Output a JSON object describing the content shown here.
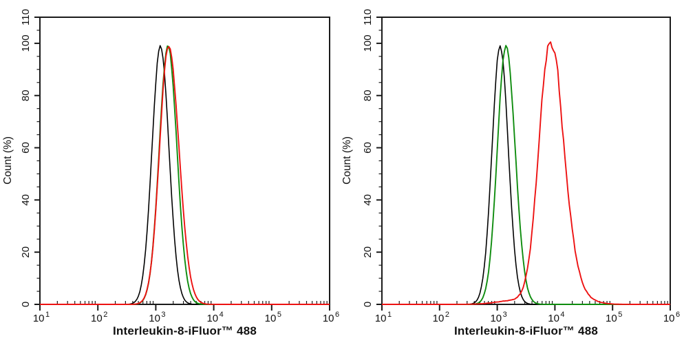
{
  "figure": {
    "background_color": "#ffffff",
    "axis_color": "#1a1a1a",
    "panel_count": 2
  },
  "chart_data": [
    {
      "type": "line",
      "subtype": "flow-cytometry-histogram-overlay",
      "title": "",
      "xlabel": "Interleukin-8-iFluor™ 488",
      "ylabel": "Count  (%)",
      "x_scale": "log10",
      "x_range": [
        10,
        1000000
      ],
      "x_major_tick_exponents": [
        1,
        2,
        3,
        4,
        5,
        6
      ],
      "x_minor_ticks": "mantissas 2-9 within each decade",
      "y_range": [
        0,
        110
      ],
      "y_major_ticks": [
        0,
        20,
        40,
        60,
        80,
        100,
        110
      ],
      "y_minor_tick_step": 5,
      "grid": false,
      "legend": "none",
      "series": [
        {
          "name": "black-curve",
          "color": "#000000",
          "stroke_width": 1.6,
          "peak_x": 1200,
          "center_log10": 3.08,
          "height_pct": 99,
          "sigma_left": 0.145,
          "sigma_right": 0.147,
          "bumps": [],
          "noise_amp_pct": 0.5,
          "noise_seed": 3
        },
        {
          "name": "green-curve",
          "color": "#0e8c0e",
          "stroke_width": 1.9,
          "peak_x": 1620,
          "center_log10": 3.21,
          "height_pct": 99,
          "sigma_left": 0.15,
          "sigma_right": 0.155,
          "bumps": [],
          "noise_amp_pct": 0.5,
          "noise_seed": 7
        },
        {
          "name": "red-curve",
          "color": "#ed1111",
          "stroke_width": 1.9,
          "peak_x": 1660,
          "center_log10": 3.22,
          "height_pct": 99,
          "sigma_left": 0.155,
          "sigma_right": 0.18,
          "bumps": [],
          "noise_amp_pct": 0.5,
          "noise_seed": 11
        }
      ]
    },
    {
      "type": "line",
      "subtype": "flow-cytometry-histogram-overlay",
      "title": "",
      "xlabel": "Interleukin-8-iFluor™ 488",
      "ylabel": "Count  (%)",
      "x_scale": "log10",
      "x_range": [
        10,
        1000000
      ],
      "x_major_tick_exponents": [
        1,
        2,
        3,
        4,
        5,
        6
      ],
      "x_minor_ticks": "mantissas 2-9 within each decade",
      "y_range": [
        0,
        110
      ],
      "y_major_ticks": [
        0,
        20,
        40,
        60,
        80,
        100,
        110
      ],
      "y_minor_tick_step": 5,
      "grid": false,
      "legend": "none",
      "series": [
        {
          "name": "black-curve",
          "color": "#000000",
          "stroke_width": 1.6,
          "peak_x": 1120,
          "center_log10": 3.05,
          "height_pct": 99,
          "sigma_left": 0.14,
          "sigma_right": 0.142,
          "bumps": [],
          "noise_amp_pct": 0.7,
          "noise_seed": 5
        },
        {
          "name": "green-curve",
          "color": "#0e8c0e",
          "stroke_width": 1.9,
          "peak_x": 1410,
          "center_log10": 3.15,
          "height_pct": 99,
          "sigma_left": 0.148,
          "sigma_right": 0.16,
          "bumps": [],
          "noise_amp_pct": 0.7,
          "noise_seed": 9
        },
        {
          "name": "red-curve",
          "color": "#ed1111",
          "stroke_width": 1.9,
          "peak_x": 8100,
          "center_log10": 3.91,
          "height_pct": 99,
          "sigma_left": 0.19,
          "sigma_right": 0.24,
          "bumps": [
            {
              "center_log10": 3.3,
              "height_pct": 1.5,
              "sigma": 0.3
            },
            {
              "center_log10": 4.04,
              "height_pct": 4.0,
              "sigma": 0.05
            },
            {
              "center_log10": 4.38,
              "height_pct": 2.5,
              "sigma": 0.26
            }
          ],
          "noise_amp_pct": 1.6,
          "noise_seed": 13
        }
      ]
    }
  ],
  "layout_note": "two side-by-side boxed log-x histogram panels, ticks: y outward, x majors outward with labels, x minors inward"
}
